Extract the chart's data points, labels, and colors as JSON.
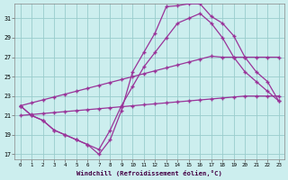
{
  "xlabel": "Windchill (Refroidissement éolien,°C)",
  "bg_color": "#cceeee",
  "grid_color": "#99cccc",
  "line_color": "#993399",
  "marker": "+",
  "xlim_min": -0.5,
  "xlim_max": 23.5,
  "ylim_min": 16.5,
  "ylim_max": 32.5,
  "yticks": [
    17,
    19,
    21,
    23,
    25,
    27,
    29,
    31
  ],
  "xticks": [
    0,
    1,
    2,
    3,
    4,
    5,
    6,
    7,
    8,
    9,
    10,
    11,
    12,
    13,
    14,
    15,
    16,
    17,
    18,
    19,
    20,
    21,
    22,
    23
  ],
  "series": [
    [
      22.0,
      21.0,
      20.5,
      19.5,
      19.0,
      18.5,
      18.0,
      17.0,
      18.5,
      21.5,
      25.5,
      27.5,
      29.5,
      32.2,
      32.3,
      32.5,
      32.5,
      31.2,
      30.5,
      29.2,
      27.0,
      25.5,
      24.5,
      22.5
    ],
    [
      22.0,
      21.0,
      20.5,
      19.5,
      19.0,
      18.5,
      18.0,
      17.5,
      19.5,
      22.0,
      24.0,
      26.0,
      27.5,
      29.0,
      30.5,
      31.0,
      31.5,
      30.5,
      29.0,
      27.0,
      25.5,
      24.5,
      23.5,
      22.5
    ],
    [
      22.0,
      22.3,
      22.6,
      22.9,
      23.2,
      23.5,
      23.8,
      24.1,
      24.4,
      24.7,
      25.0,
      25.3,
      25.6,
      25.9,
      26.2,
      26.5,
      26.8,
      27.1,
      27.0,
      27.0,
      27.0,
      27.0,
      27.0,
      27.0
    ],
    [
      21.0,
      21.1,
      21.2,
      21.3,
      21.4,
      21.5,
      21.6,
      21.7,
      21.8,
      21.9,
      22.0,
      22.1,
      22.2,
      22.3,
      22.4,
      22.5,
      22.6,
      22.7,
      22.8,
      22.9,
      23.0,
      23.0,
      23.0,
      23.0
    ]
  ]
}
